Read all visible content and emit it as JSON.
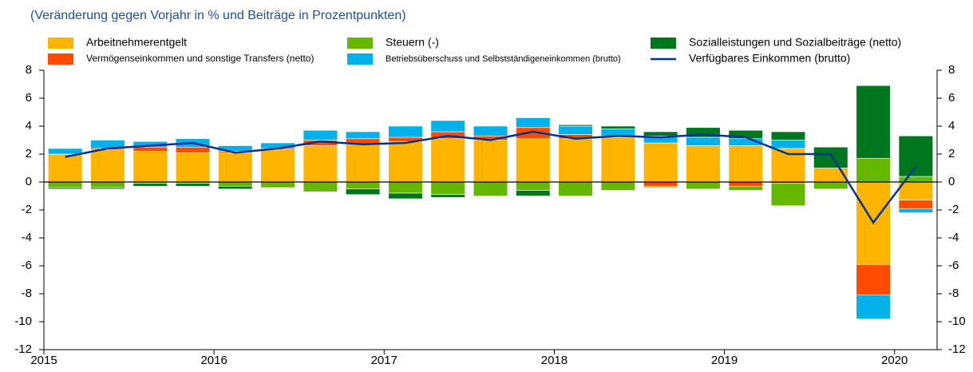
{
  "chart_data": {
    "type": "bar",
    "subtitle": "(Veränderung gegen Vorjahr in % und Beiträge in Prozentpunkten)",
    "categories": [
      "2015",
      null,
      null,
      null,
      "2016",
      null,
      null,
      null,
      "2017",
      null,
      null,
      null,
      "2018",
      null,
      null,
      null,
      "2019",
      null,
      null,
      null,
      "2020"
    ],
    "series": [
      {
        "name": "Arbeitnehmerentgelt",
        "color": "#ffb400",
        "values": [
          2.0,
          2.3,
          2.2,
          2.1,
          2.1,
          2.3,
          2.6,
          2.7,
          2.9,
          3.1,
          3.0,
          3.1,
          3.1,
          3.2,
          2.8,
          2.6,
          2.6,
          2.4,
          1.0,
          -5.9,
          -1.3
        ]
      },
      {
        "name": "Vermögenseinkommen und sonstige Transfers (netto)",
        "color": "#ff4b00",
        "values": [
          0.0,
          0.1,
          0.3,
          0.4,
          0.1,
          0.1,
          0.4,
          0.4,
          0.3,
          0.5,
          0.3,
          0.8,
          0.3,
          0.1,
          -0.3,
          0.0,
          -0.3,
          -0.1,
          0.0,
          -2.2,
          -0.6
        ]
      },
      {
        "name": "Betriebsüberschuss und Selbstständigeneinkommen (brutto)",
        "color": "#00b1ea",
        "values": [
          0.4,
          0.6,
          0.4,
          0.6,
          0.4,
          0.4,
          0.7,
          0.5,
          0.8,
          0.8,
          0.7,
          0.7,
          0.6,
          0.5,
          0.5,
          0.6,
          0.5,
          0.6,
          0.0,
          -1.7,
          -0.3
        ]
      },
      {
        "name": "Steuern (-)",
        "color": "#65b800",
        "values": [
          -0.4,
          -0.4,
          -0.1,
          -0.1,
          -0.3,
          -0.4,
          -0.7,
          -0.5,
          -0.8,
          -0.9,
          -1.0,
          -0.6,
          -1.0,
          -0.6,
          -0.1,
          -0.5,
          -0.3,
          -1.6,
          -0.5,
          1.7,
          0.4
        ]
      },
      {
        "name": "Sozialleistungen und Sozialbeiträge (netto)",
        "color": "#00771f",
        "values": [
          -0.1,
          -0.1,
          -0.2,
          -0.2,
          -0.2,
          0.0,
          0.0,
          -0.4,
          -0.4,
          -0.2,
          0.0,
          -0.4,
          0.1,
          0.2,
          0.3,
          0.7,
          0.6,
          0.6,
          1.5,
          5.2,
          2.9
        ]
      },
      {
        "name": "Verfügbares Einkommen (brutto)",
        "color": "#003299",
        "type": "line",
        "values": [
          1.8,
          2.4,
          2.6,
          2.8,
          2.1,
          2.4,
          2.9,
          2.7,
          2.8,
          3.3,
          3.0,
          3.6,
          3.1,
          3.3,
          3.2,
          3.4,
          3.2,
          2.0,
          2.0,
          -2.9,
          1.1
        ]
      }
    ],
    "ylim": [
      -12,
      8
    ],
    "yticks": [
      -12,
      -10,
      -8,
      -6,
      -4,
      -2,
      0,
      2,
      4,
      6,
      8
    ]
  }
}
